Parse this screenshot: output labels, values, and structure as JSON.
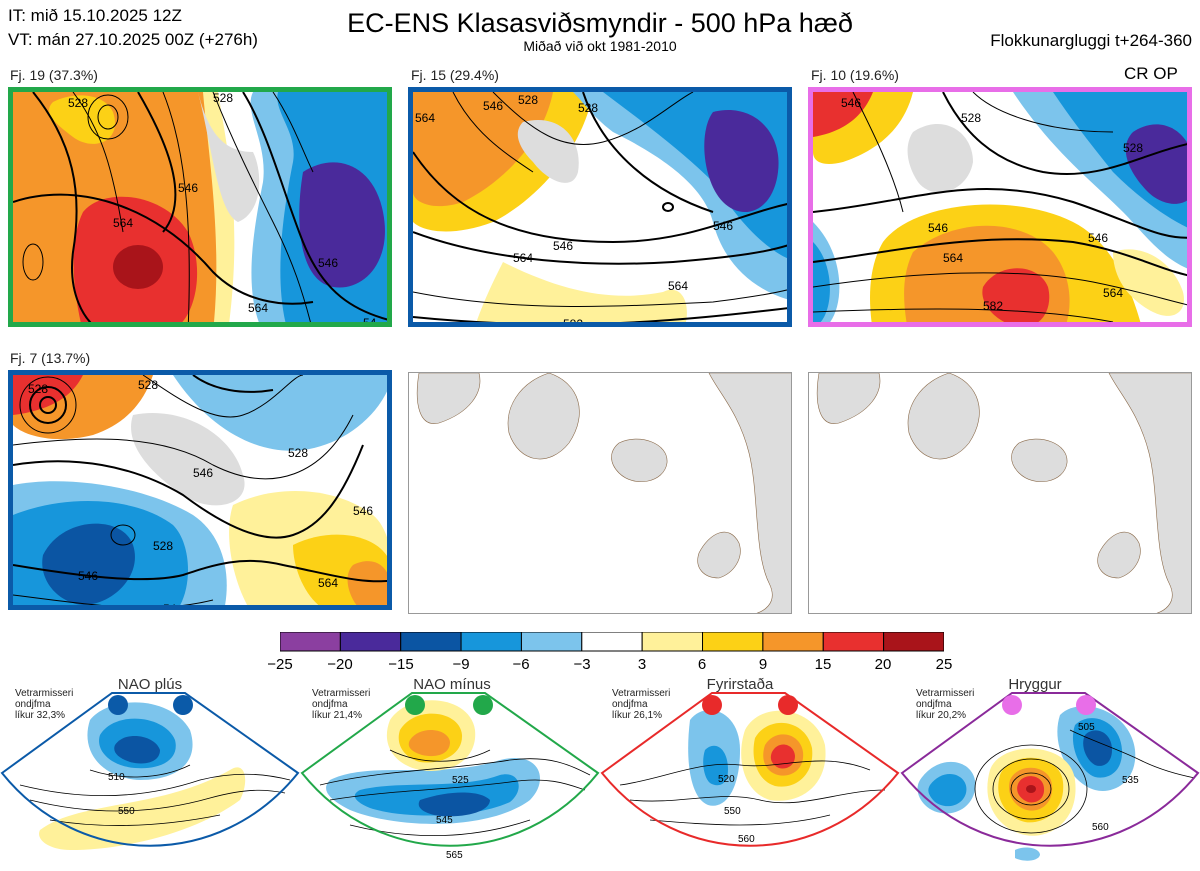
{
  "header": {
    "it_line": "IT: mið 15.10.2025 12Z",
    "vt_line": "VT: mán 27.10.2025 00Z  (+276h)",
    "title": "EC-ENS Klasasviðsmyndir - 500 hPa hæð",
    "subtitle": "Miðað við okt 1981-2010",
    "window": "Flokkunargluggi t+264-360",
    "cr_op": "CR OP"
  },
  "panels": [
    {
      "label": "Fj. 19 (37.3%)",
      "border_color": "#22a84a",
      "contours": [
        "528",
        "528",
        "546",
        "546",
        "564",
        "564",
        "54"
      ]
    },
    {
      "label": "Fj. 15 (29.4%)",
      "border_color": "#0b5aa8",
      "contours": [
        "564",
        "546",
        "528",
        "528",
        "546",
        "546",
        "564",
        "564",
        "582"
      ]
    },
    {
      "label": "Fj. 10 (19.6%)",
      "border_color": "#e86ee8",
      "contours": [
        "546",
        "528",
        "528",
        "546",
        "546",
        "564",
        "564",
        "582"
      ]
    },
    {
      "label": "Fj. 7 (13.7%)",
      "border_color": "#0b5aa8",
      "contours": [
        "528",
        "528",
        "528",
        "546",
        "546",
        "528",
        "546",
        "564",
        "54"
      ]
    }
  ],
  "colorbar": {
    "ticks": [
      "−25",
      "−20",
      "−15",
      "−9",
      "−6",
      "−3",
      "3",
      "6",
      "9",
      "15",
      "20",
      "25"
    ],
    "colors": [
      "#8b3fa0",
      "#4a2a9b",
      "#0b55a3",
      "#1796db",
      "#7cc4ec",
      "#ffffff",
      "#fff19a",
      "#fcd116",
      "#f5962a",
      "#e8302f",
      "#a9141a"
    ]
  },
  "regimes": [
    {
      "name": "NAO plús",
      "note_line1": "Vetrarmisseri",
      "note_line2": "ondjfma",
      "note_line3": "líkur 32,3%",
      "dot_color": "#0b5aa8",
      "border_color": "#0b5aa8",
      "contours": [
        "510",
        "550"
      ]
    },
    {
      "name": "NAO mínus",
      "note_line1": "Vetrarmisseri",
      "note_line2": "ondjfma",
      "note_line3": "líkur 21,4%",
      "dot_color": "#22a84a",
      "border_color": "#22a84a",
      "contours": [
        "525",
        "545",
        "565"
      ]
    },
    {
      "name": "Fyrirstaða",
      "note_line1": "Vetrarmisseri",
      "note_line2": "ondjfma",
      "note_line3": "líkur 26,1%",
      "dot_color": "#e82a2a",
      "border_color": "#e82a2a",
      "contours": [
        "520",
        "550",
        "560"
      ]
    },
    {
      "name": "Hryggur",
      "note_line1": "Vetrarmisseri",
      "note_line2": "ondjfma",
      "note_line3": "líkur 20,2%",
      "dot_color": "#e86ee8",
      "border_color": "#8a2a9a",
      "contours": [
        "505",
        "535",
        "560"
      ]
    }
  ]
}
